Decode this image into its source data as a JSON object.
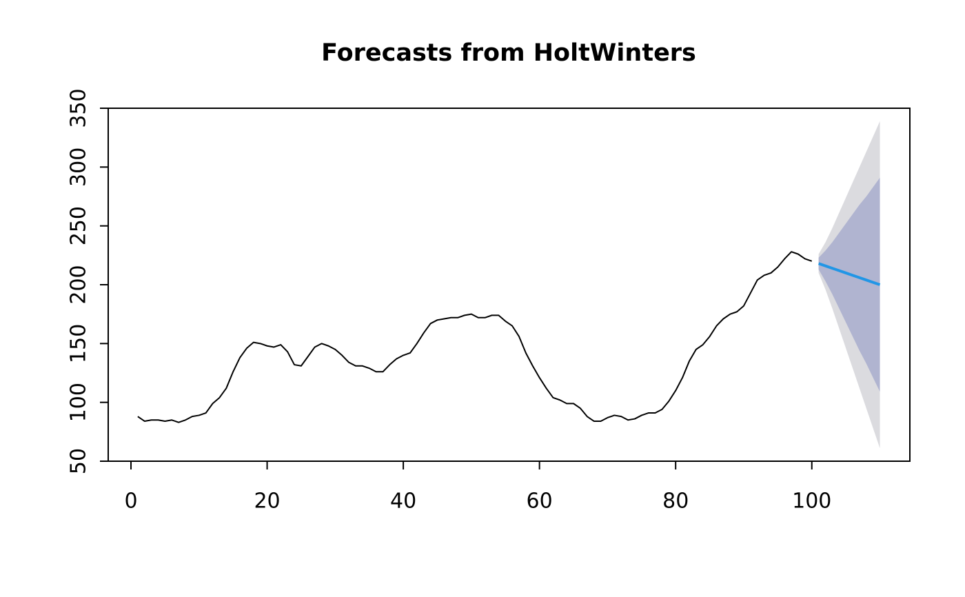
{
  "chart_data": {
    "type": "line",
    "title": "Forecasts from HoltWinters",
    "xlim": [
      -3.34,
      114.4
    ],
    "ylim": [
      50,
      350
    ],
    "xticks": [
      0,
      20,
      40,
      60,
      80,
      100
    ],
    "yticks": [
      50,
      100,
      150,
      200,
      250,
      300,
      350
    ],
    "bands": [
      {
        "color": "#dbdbdf",
        "x": [
          101,
          102,
          103,
          104,
          105,
          106,
          107,
          108,
          109,
          110
        ],
        "lower": [
          210,
          196,
          180,
          163,
          146,
          129,
          112,
          95,
          78,
          61
        ],
        "upper": [
          226,
          236,
          248,
          261,
          274,
          287,
          300,
          313,
          326,
          339
        ]
      },
      {
        "color": "#b0b4d0",
        "x": [
          101,
          102,
          103,
          104,
          105,
          106,
          107,
          108,
          109,
          110
        ],
        "lower": [
          213,
          203,
          192,
          180,
          168,
          156,
          144,
          133,
          121,
          109
        ],
        "upper": [
          223,
          229,
          236,
          244,
          252,
          260,
          268,
          275,
          283,
          291
        ]
      }
    ],
    "series": [
      {
        "color": "#000000",
        "x": [
          1,
          2,
          3,
          4,
          5,
          6,
          7,
          8,
          9,
          10,
          11,
          12,
          13,
          14,
          15,
          16,
          17,
          18,
          19,
          20,
          21,
          22,
          23,
          24,
          25,
          26,
          27,
          28,
          29,
          30,
          31,
          32,
          33,
          34,
          35,
          36,
          37,
          38,
          39,
          40,
          41,
          42,
          43,
          44,
          45,
          46,
          47,
          48,
          49,
          50,
          51,
          52,
          53,
          54,
          55,
          56,
          57,
          58,
          59,
          60,
          61,
          62,
          63,
          64,
          65,
          66,
          67,
          68,
          69,
          70,
          71,
          72,
          73,
          74,
          75,
          76,
          77,
          78,
          79,
          80,
          81,
          82,
          83,
          84,
          85,
          86,
          87,
          88,
          89,
          90,
          91,
          92,
          93,
          94,
          95,
          96,
          97,
          98,
          99,
          100
        ],
        "values": [
          88,
          84,
          85,
          85,
          84,
          85,
          83,
          85,
          88,
          89,
          91,
          99,
          104,
          112,
          126,
          138,
          146,
          151,
          150,
          148,
          147,
          149,
          143,
          132,
          131,
          139,
          147,
          150,
          148,
          145,
          140,
          134,
          131,
          131,
          129,
          126,
          126,
          132,
          137,
          140,
          142,
          150,
          159,
          167,
          170,
          171,
          172,
          172,
          174,
          175,
          172,
          172,
          174,
          174,
          169,
          165,
          156,
          142,
          131,
          121,
          112,
          104,
          102,
          99,
          99,
          95,
          88,
          84,
          84,
          87,
          89,
          88,
          85,
          86,
          89,
          91,
          91,
          94,
          101,
          110,
          121,
          135,
          145,
          149,
          156,
          165,
          171,
          175,
          177,
          182,
          193,
          204,
          208,
          210,
          215,
          222,
          228,
          226,
          222,
          220
        ]
      },
      {
        "color": "#2196e6",
        "x": [
          101,
          102,
          103,
          104,
          105,
          106,
          107,
          108,
          109,
          110
        ],
        "values": [
          218,
          216,
          214,
          212,
          210,
          208,
          206,
          204,
          202,
          200
        ]
      }
    ]
  }
}
